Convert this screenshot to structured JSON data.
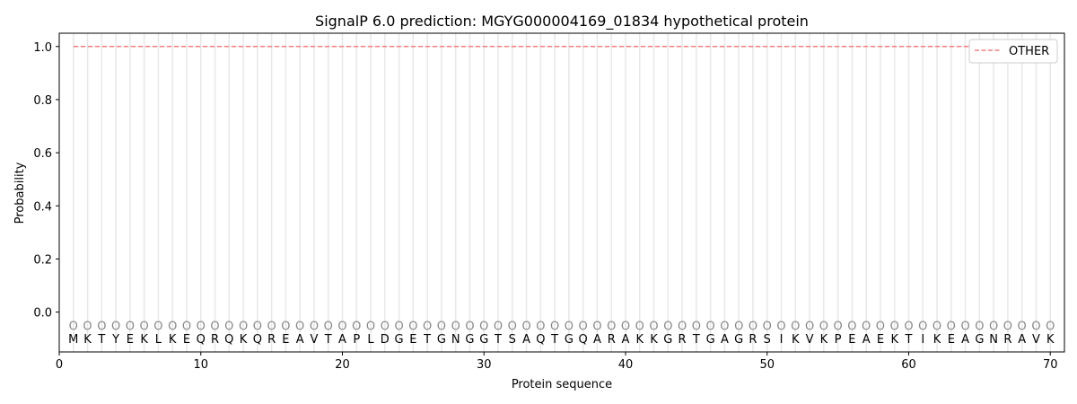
{
  "chart_data": {
    "type": "line",
    "title": "SignalP 6.0 prediction: MGYG000004169_01834 hypothetical protein",
    "xlabel": "Protein sequence",
    "ylabel": "Probability",
    "xlim": [
      0,
      71
    ],
    "ylim": [
      -0.15,
      1.05
    ],
    "xticks": [
      0,
      10,
      20,
      30,
      40,
      50,
      60,
      70
    ],
    "yticks": [
      0.0,
      0.2,
      0.4,
      0.6,
      0.8,
      1.0
    ],
    "ytick_labels": [
      "0.0",
      "0.2",
      "0.4",
      "0.6",
      "0.8",
      "1.0"
    ],
    "grid": "vertical lines at each residue",
    "legend_placement": "top-right",
    "sequence": "MKTYEKLKEQRQKQREAVTAPLDGETGNGGTSAQTGQARAKKGRTGAGRSIKVKPEAEKTIKEAGNRAVK",
    "predicted_label_per_residue": "O",
    "series": [
      {
        "name": "OTHER",
        "color": "#f08080",
        "style": "dashed",
        "x_start": 1,
        "x_end": 70,
        "value": 1.0
      }
    ]
  }
}
